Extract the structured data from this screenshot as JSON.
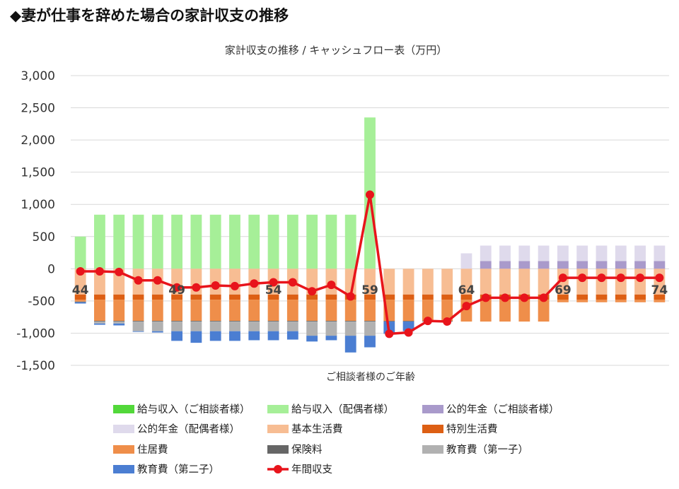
{
  "heading": "◆妻が仕事を辞めた場合の家計収支の推移",
  "chart_data": {
    "type": "bar",
    "stacked": true,
    "title": "家計収支の推移 / キャッシュフロー表（万円）",
    "xlabel": "ご相談者様のご年齢",
    "ylabel": "",
    "ylim": [
      -1500,
      3000
    ],
    "yticks": [
      3000,
      2500,
      2000,
      1500,
      1000,
      500,
      0,
      -500,
      -1000,
      -1500
    ],
    "ytick_labels": [
      "3,000",
      "2,500",
      "2,000",
      "1,500",
      "1,000",
      "500",
      "0",
      "-500",
      "-1,000",
      "-1,500"
    ],
    "grid": true,
    "legend_position": "bottom",
    "categories": [
      44,
      45,
      46,
      47,
      48,
      49,
      50,
      51,
      52,
      53,
      54,
      55,
      56,
      57,
      58,
      59,
      60,
      61,
      62,
      63,
      64,
      65,
      66,
      67,
      68,
      69,
      70,
      71,
      72,
      73,
      74
    ],
    "category_labels_shown": [
      "44",
      "49",
      "54",
      "59",
      "64",
      "69",
      "74"
    ],
    "series": [
      {
        "name": "給与収入（ご相談者様）",
        "color": "#52d83a",
        "values": [
          0,
          0,
          0,
          0,
          0,
          0,
          0,
          0,
          0,
          0,
          0,
          0,
          0,
          0,
          0,
          0,
          0,
          0,
          0,
          0,
          0,
          0,
          0,
          0,
          0,
          0,
          0,
          0,
          0,
          0,
          0
        ]
      },
      {
        "name": "給与収入（配偶者様）",
        "color": "#a6ef98",
        "values": [
          500,
          840,
          840,
          840,
          840,
          840,
          840,
          840,
          840,
          840,
          840,
          840,
          840,
          840,
          840,
          2350,
          0,
          0,
          0,
          0,
          0,
          0,
          0,
          0,
          0,
          0,
          0,
          0,
          0,
          0,
          0
        ]
      },
      {
        "name": "公的年金（ご相談者様）",
        "color": "#a99acb",
        "values": [
          0,
          0,
          0,
          0,
          0,
          0,
          0,
          0,
          0,
          0,
          0,
          0,
          0,
          0,
          0,
          0,
          0,
          0,
          0,
          0,
          0,
          120,
          120,
          120,
          120,
          120,
          120,
          120,
          120,
          120,
          120
        ]
      },
      {
        "name": "公的年金（配偶者様）",
        "color": "#dfdaec",
        "values": [
          0,
          0,
          0,
          0,
          0,
          0,
          0,
          0,
          0,
          0,
          0,
          0,
          0,
          0,
          0,
          0,
          0,
          0,
          0,
          0,
          240,
          240,
          240,
          240,
          240,
          240,
          240,
          240,
          240,
          240,
          240
        ]
      },
      {
        "name": "基本生活費",
        "color": "#f7bd93",
        "values": [
          -400,
          -400,
          -400,
          -400,
          -400,
          -400,
          -400,
          -400,
          -400,
          -400,
          -400,
          -400,
          -400,
          -400,
          -400,
          -400,
          -400,
          -400,
          -400,
          -400,
          -400,
          -400,
          -400,
          -400,
          -400,
          -400,
          -400,
          -400,
          -400,
          -400,
          -400
        ]
      },
      {
        "name": "特別生活費",
        "color": "#dd5f14",
        "values": [
          -80,
          -80,
          -80,
          -80,
          -80,
          -80,
          -80,
          -80,
          -80,
          -80,
          -80,
          -80,
          -80,
          -80,
          -80,
          -80,
          -80,
          -80,
          -80,
          -80,
          -80,
          -80,
          -80,
          -80,
          -80,
          -80,
          -80,
          -80,
          -80,
          -80,
          -80
        ]
      },
      {
        "name": "住居費",
        "color": "#ef8e4a",
        "values": [
          -30,
          -330,
          -330,
          -330,
          -330,
          -330,
          -330,
          -330,
          -330,
          -330,
          -330,
          -330,
          -330,
          -330,
          -330,
          -330,
          -330,
          -330,
          -330,
          -330,
          -340,
          -340,
          -340,
          -340,
          -340,
          -40,
          -40,
          -40,
          -40,
          -40,
          -40
        ]
      },
      {
        "name": "保険料",
        "color": "#666666",
        "values": [
          -10,
          -10,
          -10,
          -10,
          -10,
          -10,
          -10,
          -10,
          -10,
          -10,
          -10,
          -10,
          -10,
          -10,
          -10,
          -10,
          -10,
          -10,
          -10,
          -10,
          0,
          0,
          0,
          0,
          0,
          0,
          0,
          0,
          0,
          0,
          0
        ]
      },
      {
        "name": "教育費（第一子）",
        "color": "#b1b1b1",
        "values": [
          0,
          -30,
          -30,
          -150,
          -150,
          -150,
          -150,
          -150,
          -150,
          -150,
          -150,
          -150,
          -220,
          -220,
          -220,
          -220,
          0,
          0,
          0,
          0,
          0,
          0,
          0,
          0,
          0,
          0,
          0,
          0,
          0,
          0,
          0
        ]
      },
      {
        "name": "教育費（第二子）",
        "color": "#4b7ed2",
        "values": [
          -20,
          -20,
          -30,
          -10,
          -20,
          -150,
          -180,
          -150,
          -150,
          -140,
          -140,
          -130,
          -90,
          -70,
          -260,
          -180,
          -190,
          -150,
          0,
          0,
          0,
          0,
          0,
          0,
          0,
          0,
          0,
          0,
          0,
          0,
          0
        ]
      }
    ],
    "line": {
      "name": "年間収支",
      "color": "#e8141b",
      "values": [
        -40,
        -40,
        -50,
        -180,
        -180,
        -290,
        -290,
        -260,
        -270,
        -230,
        -210,
        -210,
        -350,
        -250,
        -430,
        1150,
        -1010,
        -990,
        -810,
        -820,
        -580,
        -450,
        -450,
        -450,
        -450,
        -140,
        -140,
        -140,
        -140,
        -140,
        -140
      ]
    }
  }
}
